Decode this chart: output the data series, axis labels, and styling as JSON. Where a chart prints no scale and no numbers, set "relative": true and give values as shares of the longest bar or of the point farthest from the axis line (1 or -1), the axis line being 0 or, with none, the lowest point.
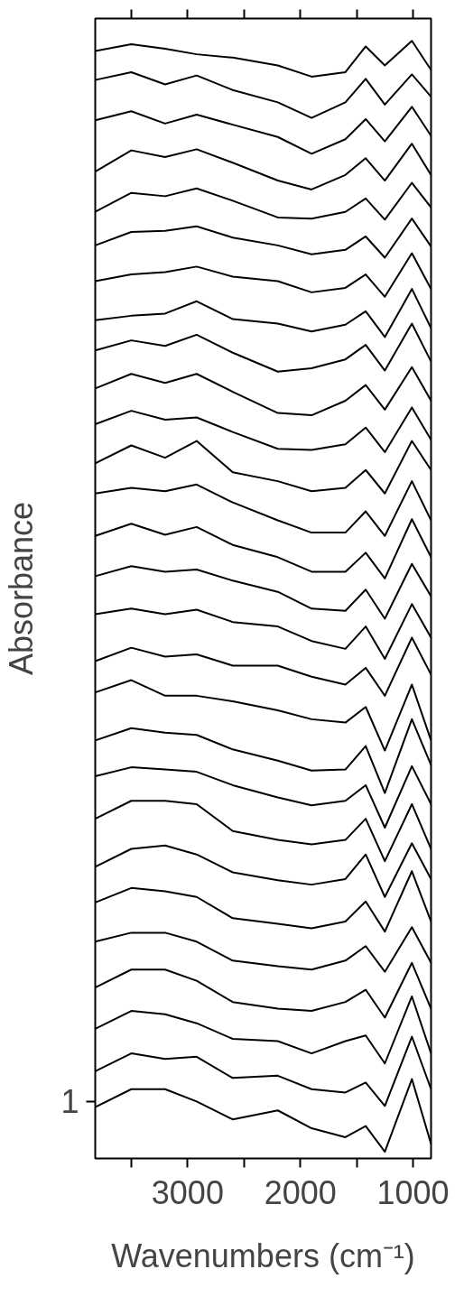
{
  "chart_data": {
    "type": "line",
    "relative": true,
    "xlabel": "Wavenumbers (cm⁻¹)",
    "ylabel": "Absorbance",
    "annotations": [
      "1"
    ],
    "x": [
      3820,
      3500,
      3200,
      2920,
      2600,
      2200,
      1900,
      1600,
      1420,
      1250,
      1010,
      840
    ],
    "xlim": [
      3820,
      840
    ],
    "xticks": [
      {
        "value": 3500,
        "label": null
      },
      3000,
      {
        "value": 2500,
        "label": null
      },
      2000,
      {
        "value": 1500,
        "label": null
      },
      1000
    ],
    "grid": false,
    "marker": "none",
    "line_style": "solid",
    "series": [
      {
        "color": "#000000",
        "values": [
          0.991,
          0.997,
          0.993,
          0.988,
          0.985,
          0.978,
          0.968,
          0.972,
          0.995,
          0.978,
          1.0,
          0.974
        ]
      },
      {
        "color": "#000000",
        "values": [
          0.965,
          0.972,
          0.961,
          0.969,
          0.956,
          0.945,
          0.931,
          0.945,
          0.966,
          0.943,
          0.97,
          0.95
        ]
      },
      {
        "color": "#000000",
        "values": [
          0.929,
          0.937,
          0.926,
          0.934,
          0.925,
          0.914,
          0.899,
          0.912,
          0.93,
          0.91,
          0.941,
          0.915
        ]
      },
      {
        "color": "#000000",
        "values": [
          0.883,
          0.902,
          0.896,
          0.903,
          0.891,
          0.875,
          0.867,
          0.88,
          0.895,
          0.875,
          0.908,
          0.88
        ]
      },
      {
        "color": "#000000",
        "values": [
          0.847,
          0.864,
          0.861,
          0.868,
          0.857,
          0.842,
          0.841,
          0.847,
          0.859,
          0.84,
          0.873,
          0.851
        ]
      },
      {
        "color": "#000000",
        "values": [
          0.817,
          0.829,
          0.83,
          0.834,
          0.824,
          0.817,
          0.809,
          0.813,
          0.825,
          0.806,
          0.841,
          0.816
        ]
      },
      {
        "color": "#000000",
        "values": [
          0.785,
          0.791,
          0.793,
          0.798,
          0.789,
          0.785,
          0.775,
          0.779,
          0.791,
          0.771,
          0.81,
          0.778
        ]
      },
      {
        "color": "#000000",
        "values": [
          0.75,
          0.754,
          0.756,
          0.767,
          0.751,
          0.747,
          0.74,
          0.746,
          0.758,
          0.735,
          0.778,
          0.743
        ]
      },
      {
        "color": "#000000",
        "values": [
          0.723,
          0.732,
          0.727,
          0.737,
          0.721,
          0.704,
          0.707,
          0.715,
          0.728,
          0.705,
          0.747,
          0.713
        ]
      },
      {
        "color": "#000000",
        "values": [
          0.689,
          0.702,
          0.694,
          0.702,
          0.686,
          0.667,
          0.665,
          0.678,
          0.692,
          0.67,
          0.708,
          0.678
        ]
      },
      {
        "color": "#000000",
        "values": [
          0.657,
          0.669,
          0.661,
          0.663,
          0.65,
          0.635,
          0.634,
          0.639,
          0.654,
          0.632,
          0.672,
          0.643
        ]
      },
      {
        "color": "#000000",
        "values": [
          0.622,
          0.638,
          0.627,
          0.642,
          0.614,
          0.606,
          0.597,
          0.6,
          0.616,
          0.595,
          0.642,
          0.616
        ]
      },
      {
        "color": "#000000",
        "values": [
          0.595,
          0.6,
          0.597,
          0.603,
          0.587,
          0.571,
          0.56,
          0.56,
          0.579,
          0.557,
          0.606,
          0.571
        ]
      },
      {
        "color": "#000000",
        "values": [
          0.557,
          0.568,
          0.558,
          0.565,
          0.549,
          0.538,
          0.525,
          0.525,
          0.542,
          0.519,
          0.572,
          0.538
        ]
      },
      {
        "color": "#000000",
        "values": [
          0.521,
          0.53,
          0.525,
          0.527,
          0.517,
          0.507,
          0.492,
          0.49,
          0.509,
          0.483,
          0.532,
          0.503
        ]
      },
      {
        "color": "#000000",
        "values": [
          0.487,
          0.492,
          0.487,
          0.491,
          0.48,
          0.476,
          0.463,
          0.456,
          0.476,
          0.447,
          0.496,
          0.466
        ]
      },
      {
        "color": "#000000",
        "values": [
          0.445,
          0.457,
          0.449,
          0.451,
          0.441,
          0.441,
          0.431,
          0.424,
          0.439,
          0.414,
          0.466,
          0.433
        ]
      },
      {
        "color": "#000000",
        "values": [
          0.417,
          0.428,
          0.414,
          0.414,
          0.409,
          0.401,
          0.393,
          0.39,
          0.404,
          0.365,
          0.424,
          0.374
        ]
      },
      {
        "color": "#000000",
        "values": [
          0.374,
          0.385,
          0.381,
          0.379,
          0.366,
          0.356,
          0.347,
          0.348,
          0.369,
          0.327,
          0.393,
          0.352
        ]
      },
      {
        "color": "#000000",
        "values": [
          0.342,
          0.35,
          0.348,
          0.346,
          0.334,
          0.323,
          0.316,
          0.32,
          0.334,
          0.296,
          0.351,
          0.317
        ]
      },
      {
        "color": "#000000",
        "values": [
          0.304,
          0.32,
          0.32,
          0.317,
          0.293,
          0.285,
          0.281,
          0.285,
          0.304,
          0.266,
          0.317,
          0.277
        ]
      },
      {
        "color": "#000000",
        "values": [
          0.261,
          0.277,
          0.28,
          0.272,
          0.256,
          0.249,
          0.245,
          0.25,
          0.272,
          0.234,
          0.282,
          0.25
        ]
      },
      {
        "color": "#000000",
        "values": [
          0.229,
          0.242,
          0.239,
          0.234,
          0.215,
          0.21,
          0.206,
          0.212,
          0.23,
          0.203,
          0.257,
          0.212
        ]
      },
      {
        "color": "#000000",
        "values": [
          0.194,
          0.202,
          0.202,
          0.194,
          0.177,
          0.172,
          0.169,
          0.177,
          0.19,
          0.167,
          0.207,
          0.175
        ]
      },
      {
        "color": "#000000",
        "values": [
          0.153,
          0.169,
          0.169,
          0.159,
          0.14,
          0.134,
          0.132,
          0.14,
          0.151,
          0.126,
          0.175,
          0.134
        ]
      },
      {
        "color": "#000000",
        "values": [
          0.116,
          0.132,
          0.129,
          0.121,
          0.107,
          0.105,
          0.094,
          0.105,
          0.11,
          0.085,
          0.145,
          0.094
        ]
      },
      {
        "color": "#000000",
        "values": [
          0.078,
          0.094,
          0.089,
          0.091,
          0.072,
          0.074,
          0.062,
          0.059,
          0.068,
          0.047,
          0.109,
          0.062
        ]
      },
      {
        "color": "#000000",
        "values": [
          0.046,
          0.062,
          0.062,
          0.051,
          0.035,
          0.043,
          0.027,
          0.019,
          0.029,
          0.006,
          0.071,
          0.013
        ]
      }
    ]
  }
}
